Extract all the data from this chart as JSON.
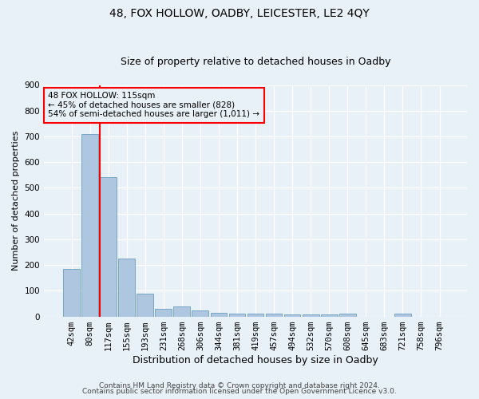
{
  "title": "48, FOX HOLLOW, OADBY, LEICESTER, LE2 4QY",
  "subtitle": "Size of property relative to detached houses in Oadby",
  "xlabel": "Distribution of detached houses by size in Oadby",
  "ylabel": "Number of detached properties",
  "categories": [
    "42sqm",
    "80sqm",
    "117sqm",
    "155sqm",
    "193sqm",
    "231sqm",
    "268sqm",
    "306sqm",
    "344sqm",
    "381sqm",
    "419sqm",
    "457sqm",
    "494sqm",
    "532sqm",
    "570sqm",
    "608sqm",
    "645sqm",
    "683sqm",
    "721sqm",
    "758sqm",
    "796sqm"
  ],
  "values": [
    185,
    708,
    543,
    225,
    90,
    30,
    40,
    25,
    15,
    12,
    12,
    10,
    8,
    8,
    8,
    10,
    0,
    0,
    10,
    0,
    0
  ],
  "bar_color": "#aec6df",
  "bar_edge_color": "#6a9fc0",
  "red_line_x": 1.525,
  "annotation_text": "48 FOX HOLLOW: 115sqm\n← 45% of detached houses are smaller (828)\n54% of semi-detached houses are larger (1,011) →",
  "ylim": [
    0,
    900
  ],
  "yticks": [
    0,
    100,
    200,
    300,
    400,
    500,
    600,
    700,
    800,
    900
  ],
  "footer_line1": "Contains HM Land Registry data © Crown copyright and database right 2024.",
  "footer_line2": "Contains public sector information licensed under the Open Government Licence v3.0.",
  "bg_color": "#e8f0f8",
  "grid_color": "#ffffff",
  "title_fontsize": 10,
  "subtitle_fontsize": 9,
  "ylabel_fontsize": 8,
  "xlabel_fontsize": 9,
  "tick_fontsize": 7.5,
  "annotation_fontsize": 7.5,
  "footer_fontsize": 6.5
}
